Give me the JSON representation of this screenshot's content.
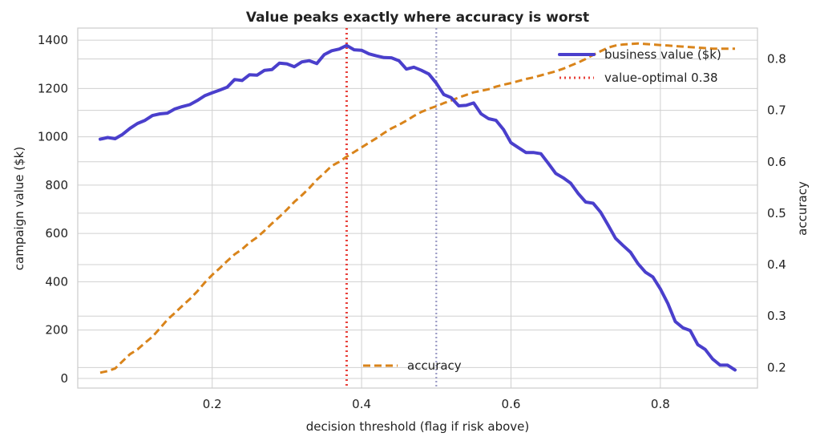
{
  "chart_data": {
    "type": "line",
    "title": "Value peaks exactly where accuracy is worst",
    "xlabel": "decision threshold (flag if risk above)",
    "ylabel_left": "campaign value ($k)",
    "ylabel_right": "accuracy",
    "xlim": [
      0.02,
      0.93
    ],
    "ylim_left": [
      -40,
      1450
    ],
    "ylim_right": [
      0.16,
      0.86
    ],
    "xticks": [
      "0.2",
      "0.4",
      "0.6",
      "0.8"
    ],
    "xtick_values": [
      0.2,
      0.4,
      0.6,
      0.8
    ],
    "yticks_left": [
      "0",
      "200",
      "400",
      "600",
      "800",
      "1000",
      "1200",
      "1400"
    ],
    "ytick_values_left": [
      0,
      200,
      400,
      600,
      800,
      1000,
      1200,
      1400
    ],
    "yticks_right": [
      "0.2",
      "0.3",
      "0.4",
      "0.5",
      "0.6",
      "0.7",
      "0.8"
    ],
    "ytick_values_right": [
      0.2,
      0.3,
      0.4,
      0.5,
      0.6,
      0.7,
      0.8
    ],
    "grid": true,
    "x": [
      0.05,
      0.06,
      0.07,
      0.08,
      0.09,
      0.1,
      0.11,
      0.12,
      0.13,
      0.14,
      0.15,
      0.16,
      0.17,
      0.18,
      0.19,
      0.2,
      0.21,
      0.22,
      0.23,
      0.24,
      0.25,
      0.26,
      0.27,
      0.28,
      0.29,
      0.3,
      0.31,
      0.32,
      0.33,
      0.34,
      0.35,
      0.36,
      0.37,
      0.38,
      0.39,
      0.4,
      0.41,
      0.42,
      0.43,
      0.44,
      0.45,
      0.46,
      0.47,
      0.48,
      0.49,
      0.5,
      0.51,
      0.52,
      0.53,
      0.54,
      0.55,
      0.56,
      0.57,
      0.58,
      0.59,
      0.6,
      0.61,
      0.62,
      0.63,
      0.64,
      0.65,
      0.66,
      0.67,
      0.68,
      0.69,
      0.7,
      0.71,
      0.72,
      0.73,
      0.74,
      0.75,
      0.76,
      0.77,
      0.78,
      0.79,
      0.8,
      0.81,
      0.82,
      0.83,
      0.84,
      0.85,
      0.86,
      0.87,
      0.88,
      0.89,
      0.9
    ],
    "series": [
      {
        "name": "business value ($k)",
        "axis": "left",
        "color": "#4a3fcc",
        "style": "solid",
        "values": [
          990,
          997,
          992,
          1010,
          1035,
          1055,
          1068,
          1088,
          1095,
          1098,
          1115,
          1125,
          1133,
          1150,
          1170,
          1182,
          1193,
          1205,
          1237,
          1233,
          1257,
          1255,
          1275,
          1278,
          1305,
          1302,
          1290,
          1310,
          1315,
          1303,
          1340,
          1356,
          1363,
          1378,
          1360,
          1358,
          1343,
          1335,
          1328,
          1327,
          1315,
          1280,
          1288,
          1275,
          1260,
          1222,
          1175,
          1162,
          1128,
          1130,
          1140,
          1095,
          1075,
          1068,
          1030,
          975,
          955,
          935,
          935,
          930,
          890,
          848,
          830,
          808,
          765,
          730,
          725,
          688,
          635,
          580,
          550,
          522,
          475,
          440,
          420,
          370,
          310,
          235,
          210,
          198,
          140,
          120,
          80,
          55,
          55,
          35
        ]
      },
      {
        "name": "accuracy",
        "axis": "right",
        "color": "#d9841b",
        "style": "dashed",
        "values": [
          0.19,
          0.193,
          0.198,
          0.212,
          0.226,
          0.235,
          0.248,
          0.26,
          0.276,
          0.293,
          0.306,
          0.32,
          0.333,
          0.348,
          0.365,
          0.38,
          0.393,
          0.407,
          0.42,
          0.43,
          0.443,
          0.453,
          0.466,
          0.48,
          0.493,
          0.507,
          0.522,
          0.535,
          0.549,
          0.565,
          0.578,
          0.592,
          0.6,
          0.61,
          0.619,
          0.628,
          0.637,
          0.646,
          0.656,
          0.665,
          0.672,
          0.68,
          0.689,
          0.697,
          0.703,
          0.708,
          0.714,
          0.719,
          0.725,
          0.73,
          0.735,
          0.738,
          0.741,
          0.746,
          0.75,
          0.753,
          0.757,
          0.761,
          0.764,
          0.768,
          0.772,
          0.776,
          0.781,
          0.787,
          0.793,
          0.8,
          0.808,
          0.815,
          0.822,
          0.826,
          0.828,
          0.829,
          0.83,
          0.829,
          0.828,
          0.827,
          0.826,
          0.825,
          0.824,
          0.823,
          0.822,
          0.821,
          0.82,
          0.82,
          0.82,
          0.82
        ]
      }
    ],
    "vlines": [
      {
        "x": 0.38,
        "color": "#e8413b",
        "style": "dotted",
        "name": "value-optimal 0.38"
      },
      {
        "x": 0.5,
        "color": "#9a9ac4",
        "style": "dotted"
      }
    ],
    "legend_left_axis": {
      "placement": "top-right",
      "entries": [
        "business value ($k)",
        "value-optimal 0.38"
      ]
    },
    "legend_right_axis": {
      "placement": "lower-center",
      "entries": [
        "accuracy"
      ]
    }
  }
}
